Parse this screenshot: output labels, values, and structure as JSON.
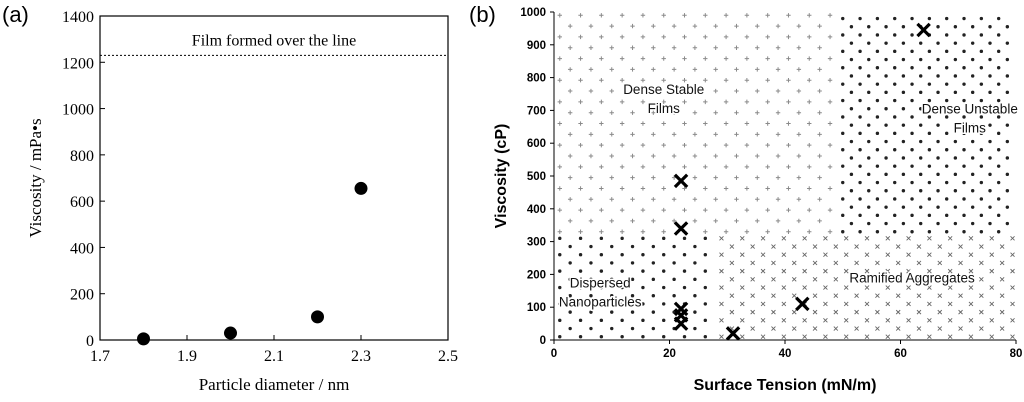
{
  "chart_data": [
    {
      "type": "scatter",
      "panel_label": "(a)",
      "xlabel": "Particle diameter / nm",
      "ylabel": "Viscosity / mPa•s",
      "xlim": [
        1.7,
        2.5
      ],
      "ylim": [
        0,
        1400
      ],
      "xticks": [
        "1.7",
        "1.9",
        "2.1",
        "2.3",
        "2.5"
      ],
      "yticks": [
        "0",
        "200",
        "400",
        "600",
        "800",
        "1000",
        "1200",
        "1400"
      ],
      "reference_line": {
        "y": 1230,
        "label": "Film formed over the line",
        "style": "dashed"
      },
      "series": [
        {
          "name": "Viscosity",
          "marker": "circle",
          "x": [
            1.8,
            2.0,
            2.2,
            2.3
          ],
          "y": [
            5,
            30,
            100,
            655
          ]
        }
      ]
    },
    {
      "type": "scatter",
      "panel_label": "(b)",
      "xlabel": "Surface Tension (mN/m)",
      "ylabel": "Viscosity (cP)",
      "xlim": [
        0,
        80
      ],
      "ylim": [
        0,
        1000
      ],
      "xticks": [
        "0",
        "20",
        "40",
        "60",
        "80"
      ],
      "yticks": [
        "0",
        "100",
        "200",
        "300",
        "400",
        "500",
        "600",
        "700",
        "800",
        "900",
        "1000"
      ],
      "regions": [
        {
          "name": "Dense Stable Films",
          "lines": [
            "Dense Stable",
            "Films"
          ],
          "marker": "plus",
          "x_range": [
            0,
            49
          ],
          "y_range": [
            320,
            1000
          ]
        },
        {
          "name": "Dense Unstable Films",
          "lines": [
            "Dense Unstable",
            "Films"
          ],
          "marker": "dot",
          "x_range": [
            49,
            80
          ],
          "y_range": [
            320,
            1000
          ]
        },
        {
          "name": "Dispersed Nanoparticles",
          "lines": [
            "Dispersed",
            "Nanoparticles"
          ],
          "marker": "dot",
          "x_range": [
            0,
            28
          ],
          "y_range": [
            0,
            320
          ]
        },
        {
          "name": "Ramified Aggregates",
          "lines": [
            "Ramified Aggregates"
          ],
          "marker": "cross",
          "x_range": [
            28,
            80
          ],
          "y_range": [
            0,
            320
          ]
        }
      ],
      "experimental_points": {
        "marker": "bold-x",
        "x": [
          22,
          22,
          22,
          22,
          22,
          31,
          43,
          64
        ],
        "y": [
          485,
          340,
          95,
          75,
          50,
          20,
          110,
          945
        ]
      }
    }
  ]
}
